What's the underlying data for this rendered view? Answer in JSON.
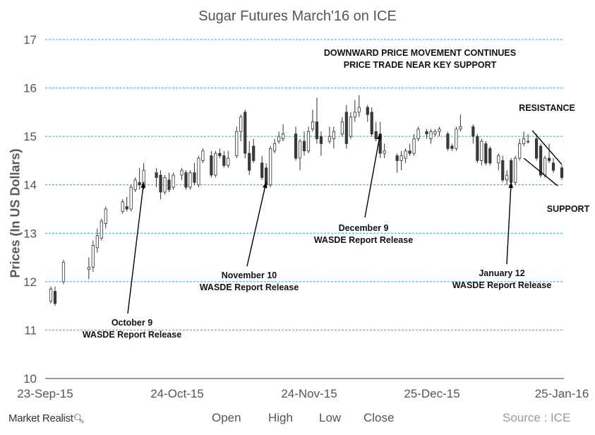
{
  "chart_data": {
    "type": "candlestick",
    "title": "Sugar Futures  March'16  on ICE",
    "ylabel": "Prices (In US Dollars)",
    "xlabel": "",
    "ylim": [
      10,
      17
    ],
    "yticks": [
      "10",
      "11",
      "12",
      "13",
      "14",
      "15",
      "16",
      "17"
    ],
    "xtick_labels": [
      "23-Sep-15",
      "24-Oct-15",
      "24-Nov-15",
      "25-Dec-15",
      "25-Jan-16"
    ],
    "grid": "horizontal dashed",
    "colors": {
      "grid": "#2aa7c9",
      "up": "#ffffff",
      "down": "#3a3a3a",
      "wick": "#333333"
    },
    "candles": [
      {
        "i": 0,
        "o": 11.6,
        "h": 11.9,
        "l": 11.55,
        "c": 11.85
      },
      {
        "i": 1,
        "o": 11.8,
        "h": 11.9,
        "l": 11.5,
        "c": 11.55
      },
      {
        "i": 3,
        "o": 12.0,
        "h": 12.45,
        "l": 11.95,
        "c": 12.4
      },
      {
        "i": 9,
        "o": 12.25,
        "h": 12.5,
        "l": 12.05,
        "c": 12.3
      },
      {
        "i": 10,
        "o": 12.3,
        "h": 12.85,
        "l": 12.2,
        "c": 12.75
      },
      {
        "i": 11,
        "o": 12.7,
        "h": 13.1,
        "l": 12.6,
        "c": 12.95
      },
      {
        "i": 12,
        "o": 12.9,
        "h": 13.3,
        "l": 12.85,
        "c": 13.25
      },
      {
        "i": 13,
        "o": 13.2,
        "h": 13.55,
        "l": 13.1,
        "c": 13.5
      },
      {
        "i": 17,
        "o": 13.45,
        "h": 13.7,
        "l": 13.4,
        "c": 13.65
      },
      {
        "i": 18,
        "o": 13.55,
        "h": 13.75,
        "l": 13.45,
        "c": 13.5
      },
      {
        "i": 19,
        "o": 13.5,
        "h": 14.0,
        "l": 13.45,
        "c": 13.95
      },
      {
        "i": 20,
        "o": 13.9,
        "h": 14.15,
        "l": 13.85,
        "c": 14.1
      },
      {
        "i": 21,
        "o": 14.05,
        "h": 14.35,
        "l": 13.9,
        "c": 14.0
      },
      {
        "i": 22,
        "o": 13.95,
        "h": 14.45,
        "l": 13.9,
        "c": 14.3
      },
      {
        "i": 25,
        "o": 14.25,
        "h": 14.35,
        "l": 13.95,
        "c": 14.15
      },
      {
        "i": 26,
        "o": 14.2,
        "h": 14.3,
        "l": 13.7,
        "c": 13.85
      },
      {
        "i": 27,
        "o": 13.85,
        "h": 14.2,
        "l": 13.8,
        "c": 14.15
      },
      {
        "i": 28,
        "o": 14.1,
        "h": 14.25,
        "l": 13.85,
        "c": 13.9
      },
      {
        "i": 29,
        "o": 13.95,
        "h": 14.25,
        "l": 13.9,
        "c": 14.2
      },
      {
        "i": 31,
        "o": 14.2,
        "h": 14.35,
        "l": 14.1,
        "c": 14.3
      },
      {
        "i": 32,
        "o": 14.25,
        "h": 14.3,
        "l": 13.9,
        "c": 13.95
      },
      {
        "i": 33,
        "o": 13.95,
        "h": 14.3,
        "l": 13.9,
        "c": 14.25
      },
      {
        "i": 34,
        "o": 14.25,
        "h": 14.45,
        "l": 14.0,
        "c": 14.05
      },
      {
        "i": 35,
        "o": 14.0,
        "h": 14.6,
        "l": 13.95,
        "c": 14.55
      },
      {
        "i": 36,
        "o": 14.5,
        "h": 14.75,
        "l": 14.45,
        "c": 14.7
      },
      {
        "i": 38,
        "o": 14.6,
        "h": 14.7,
        "l": 14.15,
        "c": 14.2
      },
      {
        "i": 39,
        "o": 14.2,
        "h": 14.7,
        "l": 14.15,
        "c": 14.65
      },
      {
        "i": 40,
        "o": 14.65,
        "h": 14.75,
        "l": 14.55,
        "c": 14.6
      },
      {
        "i": 41,
        "o": 14.6,
        "h": 14.7,
        "l": 14.35,
        "c": 14.4
      },
      {
        "i": 42,
        "o": 14.4,
        "h": 14.7,
        "l": 14.35,
        "c": 14.55
      },
      {
        "i": 44,
        "o": 14.6,
        "h": 15.2,
        "l": 14.55,
        "c": 15.1
      },
      {
        "i": 45,
        "o": 15.1,
        "h": 15.45,
        "l": 14.9,
        "c": 15.4
      },
      {
        "i": 46,
        "o": 15.5,
        "h": 15.55,
        "l": 14.55,
        "c": 14.65
      },
      {
        "i": 47,
        "o": 14.65,
        "h": 14.9,
        "l": 14.2,
        "c": 14.3
      },
      {
        "i": 48,
        "o": 14.8,
        "h": 14.95,
        "l": 14.45,
        "c": 14.5
      },
      {
        "i": 50,
        "o": 14.45,
        "h": 14.6,
        "l": 14.1,
        "c": 14.15
      },
      {
        "i": 51,
        "o": 14.35,
        "h": 14.45,
        "l": 13.95,
        "c": 14.0
      },
      {
        "i": 52,
        "o": 14.0,
        "h": 14.8,
        "l": 13.95,
        "c": 14.75
      },
      {
        "i": 53,
        "o": 14.7,
        "h": 14.95,
        "l": 14.65,
        "c": 14.85
      },
      {
        "i": 54,
        "o": 14.9,
        "h": 15.1,
        "l": 14.85,
        "c": 15.0
      },
      {
        "i": 55,
        "o": 14.95,
        "h": 15.25,
        "l": 14.9,
        "c": 15.05
      },
      {
        "i": 58,
        "o": 15.05,
        "h": 15.2,
        "l": 14.5,
        "c": 14.55
      },
      {
        "i": 59,
        "o": 14.55,
        "h": 14.95,
        "l": 14.3,
        "c": 14.9
      },
      {
        "i": 60,
        "o": 14.9,
        "h": 15.1,
        "l": 14.6,
        "c": 14.7
      },
      {
        "i": 61,
        "o": 14.7,
        "h": 15.2,
        "l": 14.65,
        "c": 15.1
      },
      {
        "i": 62,
        "o": 15.15,
        "h": 15.55,
        "l": 15.1,
        "c": 15.3
      },
      {
        "i": 63,
        "o": 15.3,
        "h": 15.8,
        "l": 14.85,
        "c": 14.95
      },
      {
        "i": 64,
        "o": 15.0,
        "h": 15.1,
        "l": 14.6,
        "c": 14.85
      },
      {
        "i": 66,
        "o": 14.9,
        "h": 15.2,
        "l": 14.85,
        "c": 15.0
      },
      {
        "i": 67,
        "o": 14.95,
        "h": 15.2,
        "l": 14.75,
        "c": 15.1
      },
      {
        "i": 69,
        "o": 15.05,
        "h": 15.4,
        "l": 15.0,
        "c": 15.3
      },
      {
        "i": 70,
        "o": 15.5,
        "h": 15.65,
        "l": 14.75,
        "c": 14.85
      },
      {
        "i": 71,
        "o": 15.0,
        "h": 15.5,
        "l": 14.95,
        "c": 15.4
      },
      {
        "i": 72,
        "o": 15.4,
        "h": 15.75,
        "l": 15.3,
        "c": 15.5
      },
      {
        "i": 73,
        "o": 15.5,
        "h": 15.85,
        "l": 15.4,
        "c": 15.6
      },
      {
        "i": 75,
        "o": 15.6,
        "h": 15.65,
        "l": 15.3,
        "c": 15.45
      },
      {
        "i": 76,
        "o": 15.5,
        "h": 15.6,
        "l": 15.0,
        "c": 15.05
      },
      {
        "i": 77,
        "o": 15.1,
        "h": 15.3,
        "l": 14.9,
        "c": 14.95
      },
      {
        "i": 78,
        "o": 15.05,
        "h": 15.3,
        "l": 14.55,
        "c": 14.65
      },
      {
        "i": 79,
        "o": 14.65,
        "h": 14.85,
        "l": 14.55,
        "c": 14.7
      },
      {
        "i": 82,
        "o": 14.6,
        "h": 14.65,
        "l": 14.25,
        "c": 14.5
      },
      {
        "i": 83,
        "o": 14.5,
        "h": 14.7,
        "l": 14.3,
        "c": 14.6
      },
      {
        "i": 84,
        "o": 14.55,
        "h": 14.75,
        "l": 14.45,
        "c": 14.7
      },
      {
        "i": 85,
        "o": 14.7,
        "h": 14.85,
        "l": 14.6,
        "c": 14.65
      },
      {
        "i": 86,
        "o": 14.65,
        "h": 15.05,
        "l": 14.6,
        "c": 14.95
      },
      {
        "i": 87,
        "o": 14.95,
        "h": 15.2,
        "l": 14.9,
        "c": 15.15
      },
      {
        "i": 89,
        "o": 15.1,
        "h": 15.15,
        "l": 14.95,
        "c": 15.05
      },
      {
        "i": 90,
        "o": 14.95,
        "h": 15.15,
        "l": 14.85,
        "c": 15.1
      },
      {
        "i": 91,
        "o": 15.05,
        "h": 15.15,
        "l": 15.0,
        "c": 15.1
      },
      {
        "i": 92,
        "o": 15.1,
        "h": 15.2,
        "l": 15.0,
        "c": 15.15
      },
      {
        "i": 94,
        "o": 15.05,
        "h": 15.1,
        "l": 14.7,
        "c": 14.75
      },
      {
        "i": 95,
        "o": 14.8,
        "h": 14.85,
        "l": 14.7,
        "c": 14.75
      },
      {
        "i": 96,
        "o": 14.75,
        "h": 15.2,
        "l": 14.7,
        "c": 15.15
      },
      {
        "i": 97,
        "o": 15.15,
        "h": 15.45,
        "l": 15.1,
        "c": 15.2
      },
      {
        "i": 100,
        "o": 15.2,
        "h": 15.25,
        "l": 14.85,
        "c": 15.0
      },
      {
        "i": 101,
        "o": 15.0,
        "h": 15.05,
        "l": 14.45,
        "c": 14.5
      },
      {
        "i": 102,
        "o": 14.5,
        "h": 14.95,
        "l": 14.4,
        "c": 14.9
      },
      {
        "i": 103,
        "o": 14.85,
        "h": 14.9,
        "l": 14.4,
        "c": 14.45
      },
      {
        "i": 104,
        "o": 14.75,
        "h": 14.8,
        "l": 14.4,
        "c": 14.45
      },
      {
        "i": 106,
        "o": 14.45,
        "h": 14.65,
        "l": 14.3,
        "c": 14.6
      },
      {
        "i": 107,
        "o": 14.5,
        "h": 14.6,
        "l": 14.05,
        "c": 14.1
      },
      {
        "i": 108,
        "o": 14.1,
        "h": 14.3,
        "l": 14.0,
        "c": 14.2
      },
      {
        "i": 109,
        "o": 14.5,
        "h": 14.55,
        "l": 14.0,
        "c": 14.05
      },
      {
        "i": 110,
        "o": 14.05,
        "h": 14.6,
        "l": 14.0,
        "c": 14.55
      },
      {
        "i": 111,
        "o": 14.55,
        "h": 14.95,
        "l": 14.5,
        "c": 14.85
      },
      {
        "i": 112,
        "o": 14.85,
        "h": 15.1,
        "l": 14.8,
        "c": 14.95
      },
      {
        "i": 113,
        "o": 14.9,
        "h": 15.05,
        "l": 14.85,
        "c": 14.9
      },
      {
        "i": 115,
        "o": 14.95,
        "h": 15.05,
        "l": 14.5,
        "c": 14.55
      },
      {
        "i": 116,
        "o": 14.8,
        "h": 14.85,
        "l": 14.15,
        "c": 14.2
      },
      {
        "i": 117,
        "o": 14.2,
        "h": 14.6,
        "l": 14.15,
        "c": 14.55
      },
      {
        "i": 118,
        "o": 14.55,
        "h": 14.85,
        "l": 14.45,
        "c": 14.5
      },
      {
        "i": 119,
        "o": 14.45,
        "h": 14.55,
        "l": 14.25,
        "c": 14.3
      },
      {
        "i": 121,
        "o": 14.35,
        "h": 14.4,
        "l": 14.1,
        "c": 14.15
      }
    ],
    "annotations": [
      {
        "key": "oct9",
        "line1": "October 9",
        "line2": "WASDE Report Release",
        "candle": 22,
        "price": 14.0
      },
      {
        "key": "nov10",
        "line1": "November 10",
        "line2": "WASDE Report Release",
        "candle": 51,
        "price": 14.0
      },
      {
        "key": "dec9",
        "line1": "December 9",
        "line2": "WASDE Report Release",
        "candle": 78,
        "price": 15.0
      },
      {
        "key": "jan12",
        "line1": "January 12",
        "line2": "WASDE Report Release",
        "candle": 109,
        "price": 14.0
      }
    ],
    "notes": {
      "headline_1": "DOWNWARD PRICE MOVEMENT CONTINUES",
      "headline_2": "PRICE TRADE NEAR KEY SUPPORT",
      "resistance": "RESISTANCE",
      "support": "SUPPORT"
    },
    "legend": [
      "Open",
      "High",
      "Low",
      "Close"
    ]
  },
  "footer": {
    "brand": "Market Realist",
    "brand_icon": "magnifier-icon",
    "source": "Source : ICE"
  }
}
